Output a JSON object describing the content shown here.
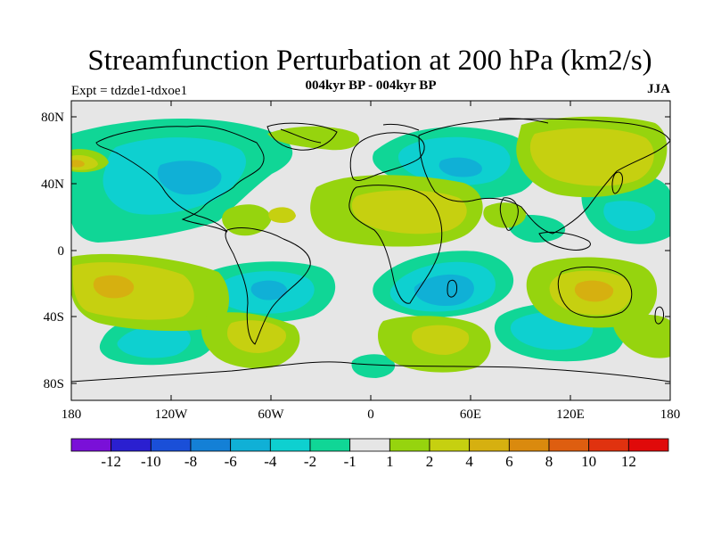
{
  "title": "Streamfunction Perturbation at 200 hPa (km2/s)",
  "subtitle": "004kyr BP - 004kyr BP",
  "left_string": "Expt = tdzde1-tdxoe1",
  "right_string": "JJA",
  "lat_labels": [
    "80N",
    "40N",
    "0",
    "40S",
    "80S"
  ],
  "lon_labels": [
    "180",
    "120W",
    "60W",
    "0",
    "60E",
    "120E",
    "180"
  ],
  "colorbar": {
    "labels": [
      "-12",
      "-10",
      "-8",
      "-6",
      "-4",
      "-2",
      "-1",
      "1",
      "2",
      "4",
      "6",
      "8",
      "10",
      "12"
    ],
    "colors": [
      "#7a10d8",
      "#2a1fd0",
      "#1a4fd8",
      "#1480d6",
      "#10b0d6",
      "#0ed0d0",
      "#10d696",
      "#e6e6e6",
      "#96d40e",
      "#c6d010",
      "#d6b010",
      "#da8a0e",
      "#de5e10",
      "#e0320f",
      "#e00a0a"
    ]
  },
  "colors": {
    "neutral": "#e6e6e6",
    "c_-1_-2": "#10d696",
    "c_-2_-4": "#0ed0d0",
    "c_-4_-6": "#10b0d6",
    "c_1_2": "#96d40e",
    "c_2_4": "#c6d010",
    "c_4_6": "#d6b010"
  }
}
